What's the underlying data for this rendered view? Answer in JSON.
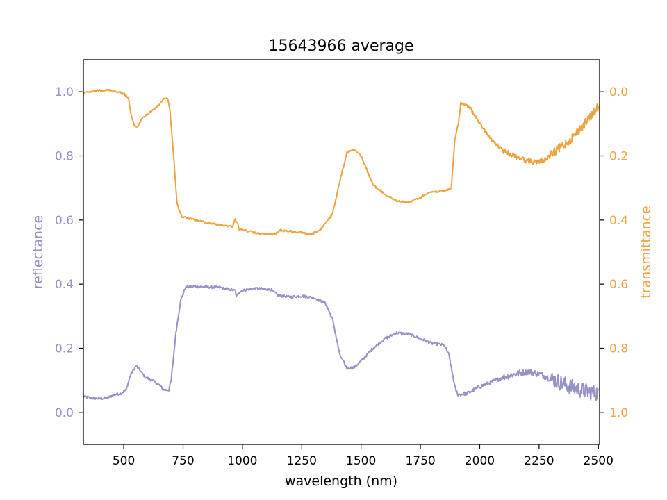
{
  "chart_data": {
    "type": "line",
    "title": "15643966 average",
    "xlabel": "wavelength (nm)",
    "ylabel_left": "reflectance",
    "ylabel_right": "transmittance",
    "xlim": [
      330,
      2505
    ],
    "ylim_left": [
      -0.1,
      1.1
    ],
    "ylim_right": [
      1.1,
      -0.1
    ],
    "x_ticks": [
      500,
      750,
      1000,
      1250,
      1500,
      1750,
      2000,
      2250,
      2500
    ],
    "y_ticks_left": [
      0.0,
      0.2,
      0.4,
      0.6,
      0.8,
      1.0
    ],
    "y_ticks_left_labels": [
      "0.0",
      "0.2",
      "0.4",
      "0.6",
      "0.8",
      "1.0"
    ],
    "y_ticks_right": [
      0.0,
      0.2,
      0.4,
      0.6,
      0.8,
      1.0
    ],
    "y_ticks_right_labels": [
      "0.0",
      "0.2",
      "0.4",
      "0.6",
      "0.8",
      "1.0"
    ],
    "x_ticks_labels": [
      "500",
      "750",
      "1000",
      "1250",
      "1500",
      "1750",
      "2000",
      "2250",
      "2500"
    ],
    "grid": false,
    "legend": "none",
    "colors": {
      "reflectance": "#9691c6",
      "transmittance": "#eda33f",
      "axis": "#000000"
    },
    "series": [
      {
        "name": "reflectance",
        "axis": "left",
        "color": "#9691c6",
        "noise": [
          [
            330,
            1900,
            0.004
          ],
          [
            1900,
            2100,
            0.006
          ],
          [
            2100,
            2300,
            0.01
          ],
          [
            2300,
            2505,
            0.025
          ]
        ],
        "points": [
          [
            330,
            0.05
          ],
          [
            360,
            0.045
          ],
          [
            400,
            0.043
          ],
          [
            430,
            0.045
          ],
          [
            460,
            0.055
          ],
          [
            490,
            0.06
          ],
          [
            510,
            0.07
          ],
          [
            530,
            0.12
          ],
          [
            552,
            0.145
          ],
          [
            570,
            0.13
          ],
          [
            590,
            0.11
          ],
          [
            620,
            0.1
          ],
          [
            650,
            0.085
          ],
          [
            670,
            0.07
          ],
          [
            690,
            0.07
          ],
          [
            700,
            0.1
          ],
          [
            720,
            0.25
          ],
          [
            740,
            0.35
          ],
          [
            760,
            0.39
          ],
          [
            800,
            0.393
          ],
          [
            900,
            0.39
          ],
          [
            970,
            0.38
          ],
          [
            975,
            0.36
          ],
          [
            985,
            0.375
          ],
          [
            1000,
            0.38
          ],
          [
            1050,
            0.387
          ],
          [
            1120,
            0.383
          ],
          [
            1150,
            0.365
          ],
          [
            1200,
            0.36
          ],
          [
            1250,
            0.363
          ],
          [
            1300,
            0.358
          ],
          [
            1350,
            0.34
          ],
          [
            1380,
            0.29
          ],
          [
            1410,
            0.18
          ],
          [
            1440,
            0.138
          ],
          [
            1470,
            0.14
          ],
          [
            1500,
            0.16
          ],
          [
            1550,
            0.2
          ],
          [
            1600,
            0.23
          ],
          [
            1650,
            0.248
          ],
          [
            1700,
            0.245
          ],
          [
            1750,
            0.23
          ],
          [
            1800,
            0.215
          ],
          [
            1850,
            0.21
          ],
          [
            1870,
            0.18
          ],
          [
            1895,
            0.08
          ],
          [
            1905,
            0.06
          ],
          [
            1910,
            0.055
          ],
          [
            1950,
            0.06
          ],
          [
            2000,
            0.08
          ],
          [
            2050,
            0.095
          ],
          [
            2100,
            0.11
          ],
          [
            2150,
            0.12
          ],
          [
            2200,
            0.128
          ],
          [
            2250,
            0.12
          ],
          [
            2300,
            0.105
          ],
          [
            2350,
            0.09
          ],
          [
            2400,
            0.075
          ],
          [
            2450,
            0.065
          ],
          [
            2500,
            0.06
          ]
        ]
      },
      {
        "name": "transmittance",
        "axis": "right",
        "color": "#eda33f",
        "noise": [
          [
            330,
            1900,
            0.003
          ],
          [
            1900,
            2100,
            0.005
          ],
          [
            2100,
            2300,
            0.008
          ],
          [
            2300,
            2505,
            0.014
          ]
        ],
        "points": [
          [
            330,
            0.005
          ],
          [
            360,
            0.0
          ],
          [
            400,
            -0.005
          ],
          [
            440,
            -0.005
          ],
          [
            470,
            0.0
          ],
          [
            500,
            0.005
          ],
          [
            520,
            0.02
          ],
          [
            530,
            0.07
          ],
          [
            545,
            0.105
          ],
          [
            558,
            0.11
          ],
          [
            575,
            0.085
          ],
          [
            600,
            0.07
          ],
          [
            625,
            0.055
          ],
          [
            650,
            0.04
          ],
          [
            670,
            0.02
          ],
          [
            685,
            0.02
          ],
          [
            695,
            0.06
          ],
          [
            710,
            0.2
          ],
          [
            725,
            0.35
          ],
          [
            745,
            0.39
          ],
          [
            800,
            0.4
          ],
          [
            900,
            0.415
          ],
          [
            960,
            0.42
          ],
          [
            968,
            0.395
          ],
          [
            980,
            0.41
          ],
          [
            985,
            0.43
          ],
          [
            1000,
            0.43
          ],
          [
            1050,
            0.44
          ],
          [
            1100,
            0.445
          ],
          [
            1140,
            0.443
          ],
          [
            1160,
            0.432
          ],
          [
            1200,
            0.435
          ],
          [
            1250,
            0.44
          ],
          [
            1290,
            0.445
          ],
          [
            1330,
            0.43
          ],
          [
            1380,
            0.38
          ],
          [
            1410,
            0.28
          ],
          [
            1440,
            0.19
          ],
          [
            1470,
            0.18
          ],
          [
            1500,
            0.2
          ],
          [
            1550,
            0.29
          ],
          [
            1600,
            0.32
          ],
          [
            1650,
            0.34
          ],
          [
            1700,
            0.345
          ],
          [
            1750,
            0.33
          ],
          [
            1780,
            0.315
          ],
          [
            1800,
            0.312
          ],
          [
            1850,
            0.31
          ],
          [
            1880,
            0.3
          ],
          [
            1895,
            0.15
          ],
          [
            1910,
            0.1
          ],
          [
            1920,
            0.035
          ],
          [
            1935,
            0.04
          ],
          [
            1960,
            0.05
          ],
          [
            2000,
            0.1
          ],
          [
            2050,
            0.15
          ],
          [
            2100,
            0.185
          ],
          [
            2150,
            0.2
          ],
          [
            2200,
            0.215
          ],
          [
            2240,
            0.22
          ],
          [
            2280,
            0.21
          ],
          [
            2330,
            0.18
          ],
          [
            2380,
            0.15
          ],
          [
            2430,
            0.11
          ],
          [
            2470,
            0.075
          ],
          [
            2500,
            0.045
          ]
        ]
      }
    ]
  }
}
